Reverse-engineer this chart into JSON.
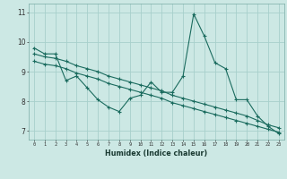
{
  "xlabel": "Humidex (Indice chaleur)",
  "xlim": [
    -0.5,
    23.5
  ],
  "ylim": [
    6.7,
    11.3
  ],
  "yticks": [
    7,
    8,
    9,
    10,
    11
  ],
  "xticks": [
    0,
    1,
    2,
    3,
    4,
    5,
    6,
    7,
    8,
    9,
    10,
    11,
    12,
    13,
    14,
    15,
    16,
    17,
    18,
    19,
    20,
    21,
    22,
    23
  ],
  "bg_color": "#cce8e4",
  "grid_color": "#a8d0cb",
  "line_color": "#1a6b5e",
  "series1_x": [
    0,
    1,
    2,
    3,
    4,
    5,
    6,
    7,
    8,
    9,
    10,
    11,
    12,
    13,
    14,
    15,
    16,
    17,
    18,
    19,
    20,
    21,
    22,
    23
  ],
  "series1_y": [
    9.8,
    9.6,
    9.6,
    8.7,
    8.85,
    8.45,
    8.05,
    7.8,
    7.65,
    8.1,
    8.2,
    8.65,
    8.3,
    8.3,
    8.85,
    10.95,
    10.2,
    9.3,
    9.1,
    8.05,
    8.05,
    7.5,
    7.15,
    6.9
  ],
  "series2_x": [
    0,
    1,
    2,
    3,
    4,
    5,
    6,
    7,
    8,
    9,
    10,
    11,
    12,
    13,
    14,
    15,
    16,
    17,
    18,
    19,
    20,
    21,
    22,
    23
  ],
  "series2_y": [
    9.35,
    9.25,
    9.2,
    9.1,
    8.95,
    8.85,
    8.75,
    8.6,
    8.5,
    8.4,
    8.3,
    8.2,
    8.1,
    7.95,
    7.85,
    7.75,
    7.65,
    7.55,
    7.45,
    7.35,
    7.25,
    7.15,
    7.05,
    6.95
  ],
  "series3_x": [
    0,
    1,
    2,
    3,
    4,
    5,
    6,
    7,
    8,
    9,
    10,
    11,
    12,
    13,
    14,
    15,
    16,
    17,
    18,
    19,
    20,
    21,
    22,
    23
  ],
  "series3_y": [
    9.6,
    9.5,
    9.45,
    9.35,
    9.2,
    9.1,
    9.0,
    8.85,
    8.75,
    8.65,
    8.55,
    8.45,
    8.35,
    8.2,
    8.1,
    8.0,
    7.9,
    7.8,
    7.7,
    7.6,
    7.5,
    7.35,
    7.2,
    7.1
  ],
  "marker": "+"
}
